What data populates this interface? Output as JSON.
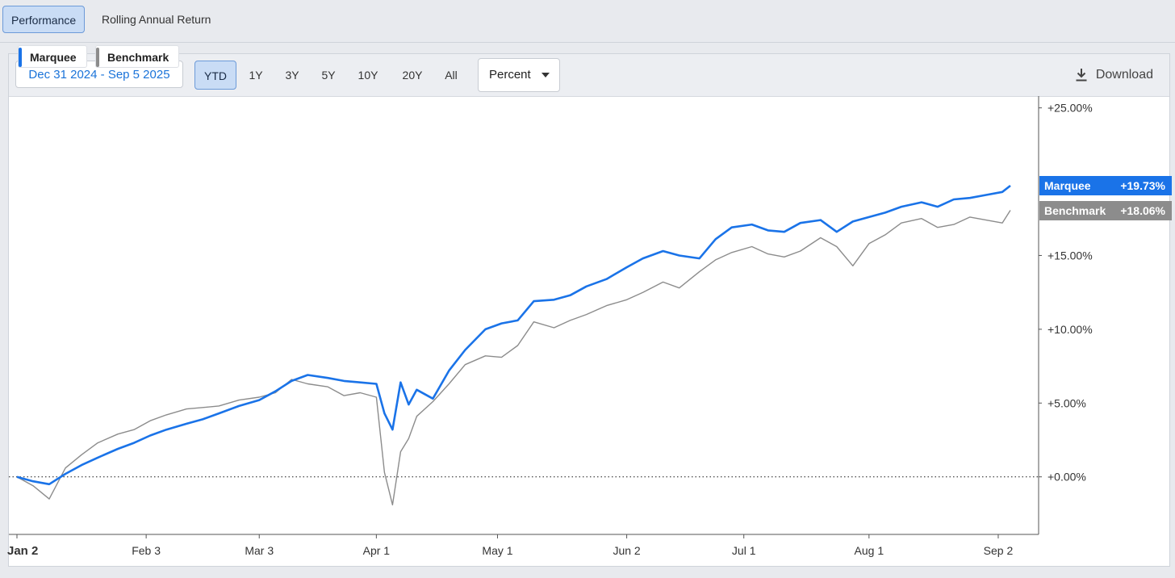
{
  "tabs": [
    {
      "label": "Performance",
      "active": true
    },
    {
      "label": "Rolling Annual Return",
      "active": false
    }
  ],
  "toolbar": {
    "date_range": "Dec 31 2024 - Sep 5 2025",
    "ranges": [
      "YTD",
      "1Y",
      "3Y",
      "5Y",
      "10Y",
      "20Y",
      "All"
    ],
    "active_range": "YTD",
    "mode": "Percent",
    "download_label": "Download"
  },
  "colors": {
    "marquee": "#1a73e8",
    "benchmark": "#8c8c8c",
    "accent": "#1a73d9"
  },
  "chart_data": {
    "type": "line",
    "x": [
      "2025-01-02",
      "2025-01-06",
      "2025-01-10",
      "2025-01-14",
      "2025-01-18",
      "2025-01-22",
      "2025-01-27",
      "2025-01-31",
      "2025-02-04",
      "2025-02-08",
      "2025-02-13",
      "2025-02-17",
      "2025-02-21",
      "2025-02-26",
      "2025-03-03",
      "2025-03-07",
      "2025-03-11",
      "2025-03-15",
      "2025-03-20",
      "2025-03-24",
      "2025-03-28",
      "2025-04-01",
      "2025-04-03",
      "2025-04-05",
      "2025-04-07",
      "2025-04-09",
      "2025-04-11",
      "2025-04-15",
      "2025-04-19",
      "2025-04-23",
      "2025-04-28",
      "2025-05-02",
      "2025-05-06",
      "2025-05-10",
      "2025-05-15",
      "2025-05-19",
      "2025-05-23",
      "2025-05-28",
      "2025-06-02",
      "2025-06-06",
      "2025-06-11",
      "2025-06-15",
      "2025-06-20",
      "2025-06-24",
      "2025-06-28",
      "2025-07-03",
      "2025-07-07",
      "2025-07-11",
      "2025-07-15",
      "2025-07-20",
      "2025-07-24",
      "2025-07-28",
      "2025-08-01",
      "2025-08-05",
      "2025-08-09",
      "2025-08-14",
      "2025-08-18",
      "2025-08-22",
      "2025-08-26",
      "2025-08-30",
      "2025-09-03",
      "2025-09-05"
    ],
    "series": [
      {
        "name": "Marquee",
        "values": [
          0.0,
          -0.3,
          -0.5,
          0.2,
          0.8,
          1.3,
          1.9,
          2.3,
          2.8,
          3.2,
          3.6,
          3.9,
          4.3,
          4.8,
          5.2,
          5.8,
          6.5,
          6.9,
          6.7,
          6.5,
          6.4,
          6.3,
          4.3,
          3.2,
          6.4,
          4.9,
          5.9,
          5.3,
          7.2,
          8.6,
          10.0,
          10.4,
          10.6,
          11.9,
          12.0,
          12.3,
          12.9,
          13.4,
          14.2,
          14.8,
          15.3,
          15.0,
          14.8,
          16.1,
          16.9,
          17.1,
          16.7,
          16.6,
          17.2,
          17.4,
          16.6,
          17.3,
          17.6,
          17.9,
          18.3,
          18.6,
          18.3,
          18.8,
          18.9,
          19.1,
          19.3,
          19.73
        ]
      },
      {
        "name": "Benchmark",
        "values": [
          0.0,
          -0.6,
          -1.5,
          0.6,
          1.5,
          2.3,
          2.9,
          3.2,
          3.8,
          4.2,
          4.6,
          4.7,
          4.8,
          5.2,
          5.4,
          5.7,
          6.6,
          6.3,
          6.1,
          5.5,
          5.7,
          5.4,
          0.3,
          -1.9,
          1.7,
          2.6,
          4.1,
          5.1,
          6.3,
          7.6,
          8.2,
          8.1,
          8.9,
          10.5,
          10.1,
          10.6,
          11.0,
          11.6,
          12.0,
          12.5,
          13.2,
          12.8,
          13.9,
          14.7,
          15.2,
          15.6,
          15.1,
          14.9,
          15.3,
          16.2,
          15.6,
          14.3,
          15.8,
          16.4,
          17.2,
          17.5,
          16.9,
          17.1,
          17.6,
          17.4,
          17.2,
          18.06
        ]
      }
    ],
    "end_labels": [
      {
        "name": "Marquee",
        "value": "+19.73%"
      },
      {
        "name": "Benchmark",
        "value": "+18.06%"
      }
    ],
    "x_ticks": [
      {
        "date": "2025-01-02",
        "label": "Jan 2"
      },
      {
        "date": "2025-02-03",
        "label": "Feb 3"
      },
      {
        "date": "2025-03-03",
        "label": "Mar 3"
      },
      {
        "date": "2025-04-01",
        "label": "Apr 1"
      },
      {
        "date": "2025-05-01",
        "label": "May 1"
      },
      {
        "date": "2025-06-02",
        "label": "Jun 2"
      },
      {
        "date": "2025-07-01",
        "label": "Jul 1"
      },
      {
        "date": "2025-08-01",
        "label": "Aug 1"
      },
      {
        "date": "2025-09-02",
        "label": "Sep 2"
      }
    ],
    "y_ticks": [
      {
        "value": 25,
        "label": "+25.00%"
      },
      {
        "value": 15,
        "label": "+15.00%"
      },
      {
        "value": 10,
        "label": "+10.00%"
      },
      {
        "value": 5,
        "label": "+5.00%"
      },
      {
        "value": 0,
        "label": "+0.00%"
      }
    ],
    "ylim": [
      -3.9,
      25.8
    ],
    "xlim": [
      "2024-12-31",
      "2025-09-12"
    ],
    "baseline": 0,
    "y_axis_side": "right",
    "legend": "top-left",
    "grid": false
  }
}
